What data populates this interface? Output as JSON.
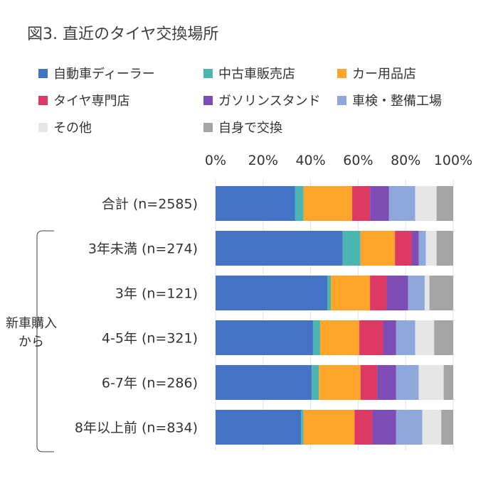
{
  "title": "図3. 直近のタイヤ交換場所",
  "group_label_lines": [
    "新車購入",
    "から"
  ],
  "legend": [
    {
      "label": "自動車ディーラー",
      "color": "#4472C4"
    },
    {
      "label": "中古車販売店",
      "color": "#4BB5B0"
    },
    {
      "label": "カー用品店",
      "color": "#FFA52C"
    },
    {
      "label": "タイヤ専門店",
      "color": "#DC3A62"
    },
    {
      "label": "ガソリンスタンド",
      "color": "#7E4CB5"
    },
    {
      "label": "車検・整備工場",
      "color": "#8FA8DB"
    },
    {
      "label": "その他",
      "color": "#E6E6E6"
    },
    {
      "label": "自身で交換",
      "color": "#A5A5A5"
    }
  ],
  "chart_data": {
    "type": "bar",
    "orientation": "horizontal",
    "stacked": "percent",
    "xlim": [
      0,
      100
    ],
    "x_ticks": [
      "0%",
      "20%",
      "40%",
      "60%",
      "80%",
      "100%"
    ],
    "x_axis_position": "top",
    "grid": true,
    "categories": [
      "合計 (n=2585)",
      "3年未満 (n=274)",
      "3年 (n=121)",
      "4-5年 (n=321)",
      "6-7年 (n=286)",
      "8年以上前 (n=834)"
    ],
    "series": [
      {
        "name": "自動車ディーラー",
        "values": [
          33.5,
          53.5,
          47.0,
          41.0,
          40.5,
          36.0
        ]
      },
      {
        "name": "中古車販売店",
        "values": [
          3.5,
          7.5,
          1.5,
          3.0,
          3.0,
          1.0
        ]
      },
      {
        "name": "カー用品店",
        "values": [
          20.5,
          14.5,
          16.5,
          16.5,
          17.5,
          21.5
        ]
      },
      {
        "name": "タイヤ専門店",
        "values": [
          7.5,
          7.0,
          7.0,
          10.0,
          7.0,
          7.5
        ]
      },
      {
        "name": "ガソリンスタンド",
        "values": [
          8.0,
          3.0,
          9.0,
          5.5,
          8.0,
          10.0
        ]
      },
      {
        "name": "車検・整備工場",
        "values": [
          11.0,
          3.0,
          7.0,
          8.0,
          9.5,
          11.0
        ]
      },
      {
        "name": "その他",
        "values": [
          9.0,
          4.5,
          2.0,
          8.0,
          10.5,
          8.0
        ]
      },
      {
        "name": "自身で交換",
        "values": [
          7.0,
          7.0,
          10.0,
          8.0,
          4.0,
          5.0
        ]
      }
    ]
  }
}
